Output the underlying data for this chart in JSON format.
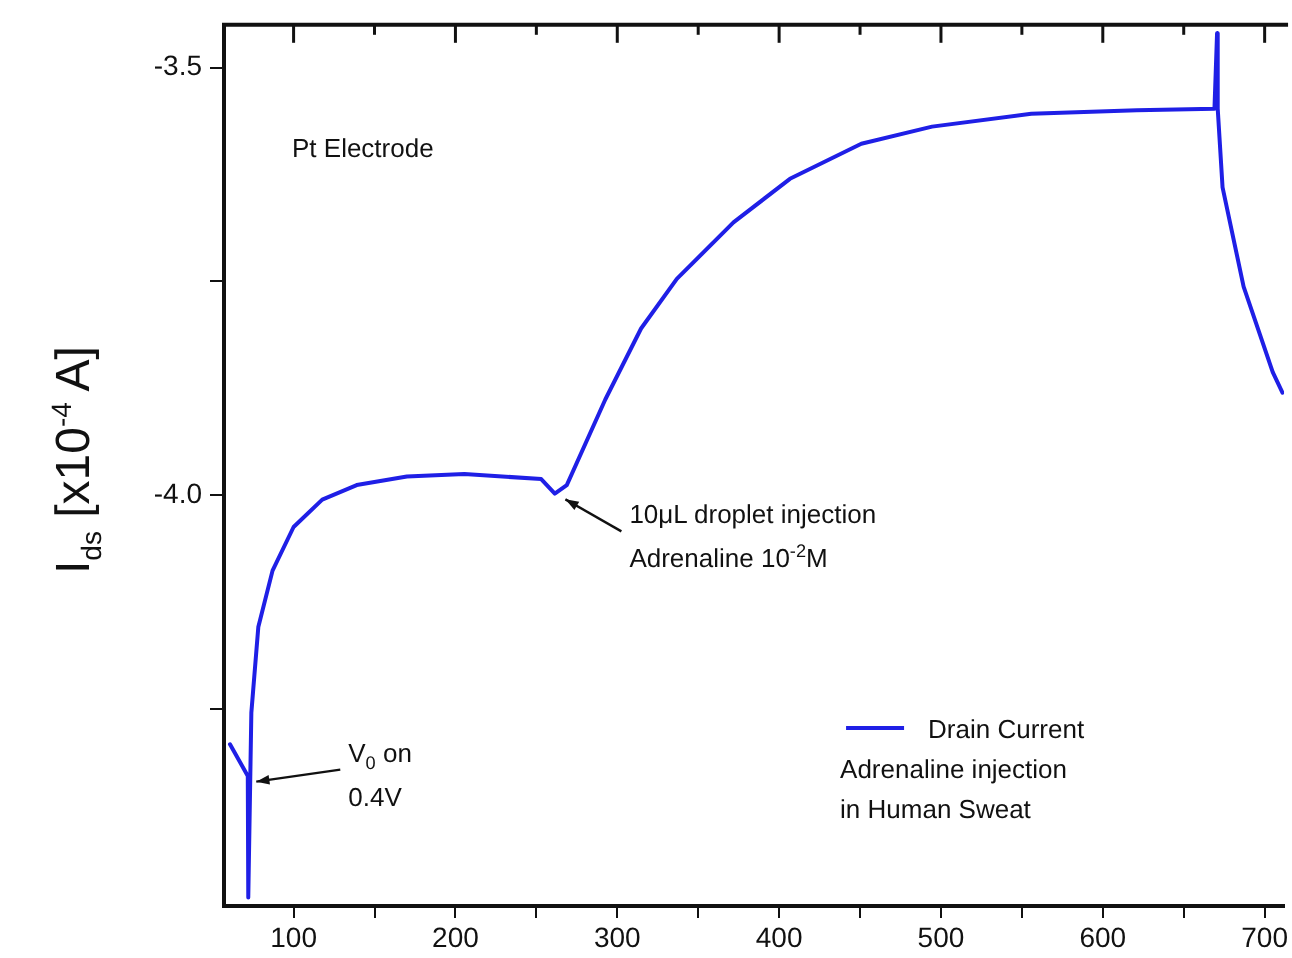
{
  "chart_data": {
    "type": "line",
    "ylabel": "I$_{ds}$ [x10$^{-4}$ A]",
    "x": [
      60.7,
      71.7,
      72,
      73.9,
      78.2,
      87,
      100,
      117.7,
      139,
      170,
      205.5,
      253,
      261.4,
      268.8,
      292.6,
      314.7,
      336.8,
      371.8,
      406.7,
      450.8,
      494.5,
      555.8,
      621,
      669,
      670.6,
      671,
      674,
      687,
      705,
      711
    ],
    "series": [
      {
        "name": "Drain Current\nAdrenaline injection\nin Human Sweat",
        "color": "#1f1fe6",
        "values": [
          -4.291,
          -4.328,
          -4.47,
          -4.254,
          -4.154,
          -4.088,
          -4.037,
          -4.005,
          -3.988,
          -3.978,
          -3.975,
          -3.981,
          -3.998,
          -3.988,
          -3.888,
          -3.805,
          -3.747,
          -3.681,
          -3.63,
          -3.589,
          -3.569,
          -3.554,
          -3.55,
          -3.548,
          -3.46,
          -3.548,
          -3.64,
          -3.756,
          -3.856,
          -3.88
        ]
      }
    ],
    "xlim": [
      57,
      712
    ],
    "xticks": [
      100,
      {
        "value": 150,
        "label": null
      },
      200,
      {
        "value": 250,
        "label": null
      },
      300,
      {
        "value": 350,
        "label": null
      },
      400,
      {
        "value": 450,
        "label": null
      },
      500,
      {
        "value": 550,
        "label": null
      },
      600,
      {
        "value": 650,
        "label": null
      },
      700
    ],
    "ylim": [
      -4.48,
      -3.45
    ],
    "yticks": [
      {
        "value": -3.5,
        "label": "-3.5"
      },
      {
        "value": -3.75,
        "label": null
      },
      {
        "value": -4.0,
        "label": "-4.0"
      },
      {
        "value": -4.25,
        "label": null
      }
    ],
    "annotations": [
      "Pt Electrode",
      {
        "text": "10μL droplet injection\nAdrenaline 10$^{-2}$M",
        "x": 263,
        "y": -4.0
      },
      {
        "text": "V$_{0}$ on\n0.4V",
        "x": 72,
        "y": -4.33
      }
    ],
    "grid": false,
    "legend": "bottom right",
    "marker": "none",
    "line_style": "solid"
  }
}
